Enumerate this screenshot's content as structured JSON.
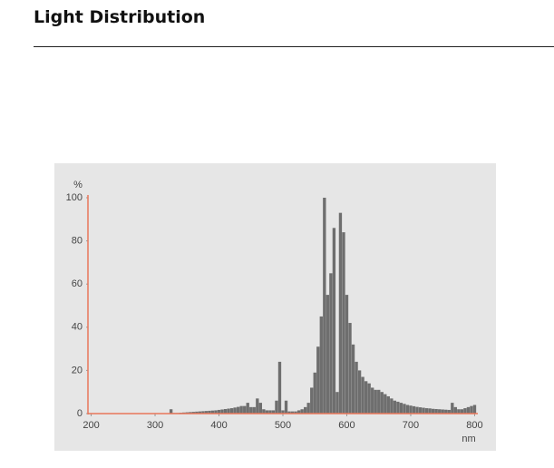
{
  "header": {
    "title": "Light Distribution"
  },
  "chart_data": {
    "type": "bar",
    "y_label": "%",
    "x_label": "nm",
    "color": "#6e6e6e",
    "axis_color": "#e8775a",
    "xlim": [
      195,
      805
    ],
    "xticks": [
      200,
      300,
      400,
      500,
      600,
      700,
      800
    ],
    "ylim": [
      0,
      100
    ],
    "yticks": [
      0,
      20,
      40,
      60,
      80,
      100
    ],
    "x": [
      320,
      325,
      330,
      335,
      340,
      345,
      350,
      355,
      360,
      365,
      370,
      375,
      380,
      385,
      390,
      395,
      400,
      405,
      410,
      415,
      420,
      425,
      430,
      435,
      440,
      445,
      450,
      455,
      460,
      465,
      470,
      475,
      480,
      485,
      490,
      495,
      500,
      505,
      510,
      515,
      520,
      525,
      530,
      535,
      540,
      545,
      550,
      555,
      560,
      565,
      570,
      575,
      580,
      585,
      590,
      595,
      600,
      605,
      610,
      615,
      620,
      625,
      630,
      635,
      640,
      645,
      650,
      655,
      660,
      665,
      670,
      675,
      680,
      685,
      690,
      695,
      700,
      705,
      710,
      715,
      720,
      725,
      730,
      735,
      740,
      745,
      750,
      755,
      760,
      765,
      770,
      775,
      780,
      785,
      790,
      795,
      800
    ],
    "values": [
      0,
      2,
      0.3,
      0.3,
      0.4,
      0.5,
      0.6,
      0.7,
      0.8,
      0.9,
      1,
      1.1,
      1.2,
      1.3,
      1.4,
      1.5,
      1.7,
      1.9,
      2.1,
      2.3,
      2.5,
      2.8,
      3.1,
      3.5,
      3.5,
      5,
      3,
      3,
      7,
      5,
      2,
      1.5,
      1.5,
      1.5,
      6,
      24,
      1.5,
      6,
      1,
      1,
      1,
      1.5,
      2,
      3,
      5,
      12,
      19,
      31,
      45,
      100,
      55,
      65,
      86,
      10,
      93,
      84,
      55,
      42,
      32,
      24,
      20,
      17,
      15,
      14,
      12,
      11,
      11,
      10,
      9,
      8,
      7,
      6,
      5.5,
      5,
      4.5,
      4,
      3.7,
      3.4,
      3.1,
      2.9,
      2.7,
      2.5,
      2.4,
      2.2,
      2.1,
      2,
      1.9,
      1.8,
      1.7,
      5,
      3,
      2,
      2,
      2.5,
      3,
      3.5,
      4
    ]
  }
}
